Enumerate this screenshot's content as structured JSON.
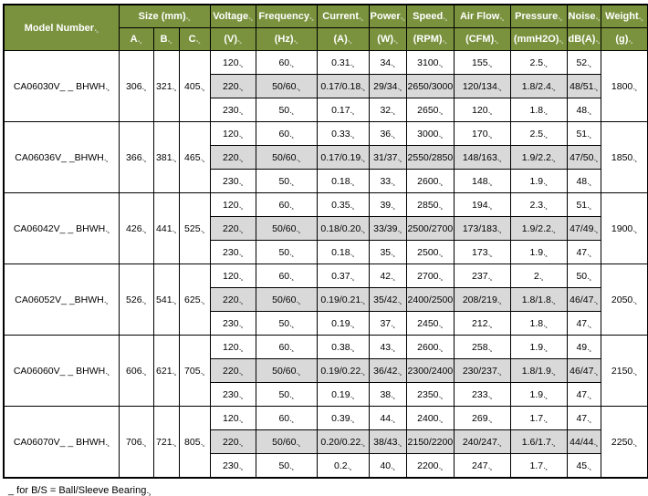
{
  "colors": {
    "header_bg": "#7A923E",
    "header_text": "#FFFFFF",
    "highlight_bg": "#D9D9D9",
    "border": "#000000"
  },
  "table": {
    "header": {
      "model": "Model Number",
      "size_group": "Size (mm)",
      "size_cols": [
        "A",
        "B",
        "C"
      ],
      "cols": [
        {
          "label": "Voltage",
          "unit": "(V)"
        },
        {
          "label": "Frequency",
          "unit": "(Hz)"
        },
        {
          "label": "Current",
          "unit": "(A)"
        },
        {
          "label": "Power",
          "unit": "(W)"
        },
        {
          "label": "Speed",
          "unit": "(RPM)"
        },
        {
          "label": "Air Flow",
          "unit": "(CFM)"
        },
        {
          "label": "Pressure",
          "unit": "(mmH2O)"
        },
        {
          "label": "Noise",
          "unit": "dB(A)"
        },
        {
          "label": "Weight",
          "unit": "(g)"
        }
      ]
    },
    "groups": [
      {
        "model": "CA06030V_ _ BHWH",
        "a": "306",
        "b": "321",
        "c": "405",
        "weight": "1800",
        "rows": [
          {
            "voltage": "120",
            "frequency": "60",
            "current": "0.31",
            "power": "34",
            "speed": "3100",
            "airflow": "155",
            "pressure": "2.5",
            "noise": "52",
            "highlight": false
          },
          {
            "voltage": "220",
            "frequency": "50/60",
            "current": "0.17/0.18",
            "power": "29/34",
            "speed": "2650/3000",
            "airflow": "120/134",
            "pressure": "1.8/2.4",
            "noise": "48/51",
            "highlight": true
          },
          {
            "voltage": "230",
            "frequency": "50",
            "current": "0.17",
            "power": "32",
            "speed": "2650",
            "airflow": "120",
            "pressure": "1.8",
            "noise": "48",
            "highlight": false
          }
        ]
      },
      {
        "model": "CA06036V_ _BHWH",
        "a": "366",
        "b": "381",
        "c": "465",
        "weight": "1850",
        "rows": [
          {
            "voltage": "120",
            "frequency": "60",
            "current": "0.33",
            "power": "36",
            "speed": "3000",
            "airflow": "170",
            "pressure": "2.5",
            "noise": "51",
            "highlight": false
          },
          {
            "voltage": "220",
            "frequency": "50/60",
            "current": "0.17/0.19",
            "power": "31/37",
            "speed": "2550/2850",
            "airflow": "148/163",
            "pressure": "1.9/2.2",
            "noise": "47/50",
            "highlight": true
          },
          {
            "voltage": "230",
            "frequency": "50",
            "current": "0.18",
            "power": "33",
            "speed": "2600",
            "airflow": "148",
            "pressure": "1.9",
            "noise": "48",
            "highlight": false
          }
        ]
      },
      {
        "model": "CA06042V_ _ BHWH",
        "a": "426",
        "b": "441",
        "c": "525",
        "weight": "1900",
        "rows": [
          {
            "voltage": "120",
            "frequency": "60",
            "current": "0.35",
            "power": "39",
            "speed": "2850",
            "airflow": "194",
            "pressure": "2.3",
            "noise": "51",
            "highlight": false
          },
          {
            "voltage": "220",
            "frequency": "50/60",
            "current": "0.18/0.20",
            "power": "33/39",
            "speed": "2500/2700",
            "airflow": "173/183",
            "pressure": "1.9/2.2",
            "noise": "47/49",
            "highlight": true
          },
          {
            "voltage": "230",
            "frequency": "50",
            "current": "0.18",
            "power": "35",
            "speed": "2500",
            "airflow": "173",
            "pressure": "1.9",
            "noise": "47",
            "highlight": false
          }
        ]
      },
      {
        "model": "CA06052V_ _BHWH",
        "a": "526",
        "b": "541",
        "c": "625",
        "weight": "2050",
        "rows": [
          {
            "voltage": "120",
            "frequency": "60",
            "current": "0.37",
            "power": "42",
            "speed": "2700",
            "airflow": "237",
            "pressure": "2",
            "noise": "50",
            "highlight": false
          },
          {
            "voltage": "220",
            "frequency": "50/60",
            "current": "0.19/0.21",
            "power": "35/42",
            "speed": "2400/2500",
            "airflow": "208/219",
            "pressure": "1.8/1.8",
            "noise": "46/47",
            "highlight": true
          },
          {
            "voltage": "230",
            "frequency": "50",
            "current": "0.19",
            "power": "37",
            "speed": "2450",
            "airflow": "212",
            "pressure": "1.8",
            "noise": "47",
            "highlight": false
          }
        ]
      },
      {
        "model": "CA06060V_ _ BHWH",
        "a": "606",
        "b": "621",
        "c": "705",
        "weight": "2150",
        "rows": [
          {
            "voltage": "120",
            "frequency": "60",
            "current": "0.38",
            "power": "43",
            "speed": "2600",
            "airflow": "258",
            "pressure": "1.9",
            "noise": "49",
            "highlight": false
          },
          {
            "voltage": "220",
            "frequency": "50/60",
            "current": "0.19/0.22",
            "power": "36/42",
            "speed": "2300/2400",
            "airflow": "230/237",
            "pressure": "1.8/1.9",
            "noise": "46/47",
            "highlight": true
          },
          {
            "voltage": "230",
            "frequency": "50",
            "current": "0.19",
            "power": "38",
            "speed": "2350",
            "airflow": "233",
            "pressure": "1.9",
            "noise": "47",
            "highlight": false
          }
        ]
      },
      {
        "model": "CA06070V_ _ BHWH",
        "a": "706",
        "b": "721",
        "c": "805",
        "weight": "2250",
        "rows": [
          {
            "voltage": "120",
            "frequency": "60",
            "current": "0.39",
            "power": "44",
            "speed": "2400",
            "airflow": "269",
            "pressure": "1.7",
            "noise": "47",
            "highlight": false
          },
          {
            "voltage": "220",
            "frequency": "50/60",
            "current": "0.20/0.22",
            "power": "38/43",
            "speed": "2150/2200",
            "airflow": "240/247",
            "pressure": "1.6/1.7",
            "noise": "44/44",
            "highlight": true
          },
          {
            "voltage": "230",
            "frequency": "50",
            "current": "0.2",
            "power": "40",
            "speed": "2200",
            "airflow": "247",
            "pressure": "1.7",
            "noise": "45",
            "highlight": false
          }
        ]
      }
    ]
  },
  "footer_note": "_ for B/S = Ball/Sleeve Bearing"
}
